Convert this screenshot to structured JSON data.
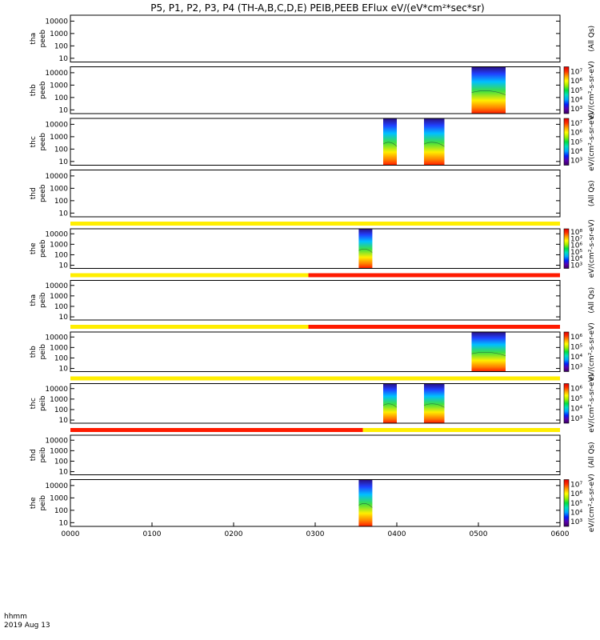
{
  "chart_data": {
    "type": "heatmap",
    "title": "P5, P1, P2, P3, P4 (TH-A,B,C,D,E) PEIB,PEEB EFlux eV/(eV*cm²*sec*sr)",
    "x_range_hhmm": [
      "0000",
      "0600"
    ],
    "x_ticks": [
      "0000",
      "0100",
      "0200",
      "0300",
      "0400",
      "0500",
      "0600"
    ],
    "x_caption": "hhmm",
    "date": "2019 Aug 13",
    "y_ticks": [
      "10",
      "100",
      "1000",
      "10000"
    ],
    "y_scale": "log",
    "y_range_eV": [
      5,
      30000
    ],
    "mode_bar_colors": {
      "fast": "#ffee00",
      "slow": "#ff1a00"
    },
    "panels": [
      {
        "probe": "tha",
        "product": "peeb",
        "colorbar": false,
        "cbar_label": "(All Qs)",
        "cbar_ticks": [],
        "data": [],
        "mode_segments": []
      },
      {
        "probe": "thb",
        "product": "peeb",
        "colorbar": true,
        "cbar_label": "eV/(cm²-s-sr-eV)",
        "cbar_ticks": [
          "10³",
          "10⁴",
          "10⁵",
          "10⁶",
          "10⁷"
        ],
        "data": [
          {
            "start": "0455",
            "end": "0520"
          }
        ],
        "mode_segments": []
      },
      {
        "probe": "thc",
        "product": "peeb",
        "colorbar": true,
        "cbar_label": "eV/(cm²-s-sr-eV)",
        "cbar_ticks": [
          "10³",
          "10⁴",
          "10⁵",
          "10⁶",
          "10⁷"
        ],
        "data": [
          {
            "start": "0350",
            "end": "0400"
          },
          {
            "start": "0420",
            "end": "0435"
          }
        ],
        "mode_segments": []
      },
      {
        "probe": "thd",
        "product": "peeb",
        "colorbar": false,
        "cbar_label": "(All Qs)",
        "cbar_ticks": [],
        "data": [],
        "mode_segments": []
      },
      {
        "probe": "the",
        "product": "peeb",
        "colorbar": true,
        "cbar_label": "eV/(cm²-s-sr-eV)",
        "cbar_ticks": [
          "10³",
          "10⁴",
          "10⁵",
          "10⁶",
          "10⁷",
          "10⁸"
        ],
        "data": [
          {
            "start": "0332",
            "end": "0342"
          }
        ],
        "mode_segments": [
          {
            "start": "0000",
            "end": "0600",
            "mode": "fast"
          }
        ]
      },
      {
        "probe": "tha",
        "product": "peib",
        "colorbar": false,
        "cbar_label": "(All Qs)",
        "cbar_ticks": [],
        "data": [],
        "mode_segments": [
          {
            "start": "0000",
            "end": "0255",
            "mode": "fast"
          },
          {
            "start": "0255",
            "end": "0600",
            "mode": "slow"
          }
        ]
      },
      {
        "probe": "thb",
        "product": "peib",
        "colorbar": true,
        "cbar_label": "eV/(cm²-s-sr-eV)",
        "cbar_ticks": [
          "10³",
          "10⁴",
          "10⁵",
          "10⁶"
        ],
        "data": [
          {
            "start": "0455",
            "end": "0520"
          }
        ],
        "mode_segments": [
          {
            "start": "0000",
            "end": "0255",
            "mode": "fast"
          },
          {
            "start": "0255",
            "end": "0600",
            "mode": "slow"
          }
        ]
      },
      {
        "probe": "thc",
        "product": "peib",
        "colorbar": true,
        "cbar_label": "eV/(cm²-s-sr-eV)",
        "cbar_ticks": [
          "10³",
          "10⁴",
          "10⁵",
          "10⁶"
        ],
        "data": [
          {
            "start": "0350",
            "end": "0400"
          },
          {
            "start": "0420",
            "end": "0435"
          }
        ],
        "mode_segments": [
          {
            "start": "0000",
            "end": "0600",
            "mode": "fast"
          }
        ]
      },
      {
        "probe": "thd",
        "product": "peib",
        "colorbar": false,
        "cbar_label": "(All Qs)",
        "cbar_ticks": [],
        "data": [],
        "mode_segments": [
          {
            "start": "0000",
            "end": "0335",
            "mode": "slow"
          },
          {
            "start": "0335",
            "end": "0600",
            "mode": "fast"
          }
        ]
      },
      {
        "probe": "the",
        "product": "peib",
        "colorbar": true,
        "cbar_label": "eV/(cm²-s-sr-eV)",
        "cbar_ticks": [
          "10³",
          "10⁴",
          "10⁵",
          "10⁶",
          "10⁷"
        ],
        "data": [
          {
            "start": "0332",
            "end": "0342"
          }
        ],
        "mode_segments": []
      }
    ]
  }
}
